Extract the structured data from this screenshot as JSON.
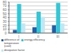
{
  "chart_data": {
    "type": "bar",
    "categories": [
      "I",
      "II",
      "III"
    ],
    "series": [
      {
        "name": "difference of\ntemperature\n(cool)",
        "color": "#2060a8",
        "values": [
          8,
          15,
          20
        ]
      },
      {
        "name": "energy efficiency",
        "color": "#30c8d8",
        "values": [
          75,
          55,
          78
        ]
      },
      {
        "name": "dissipative factor",
        "color": "#c0e8f4",
        "values": [
          25,
          42,
          25
        ]
      }
    ],
    "ylim": [
      0,
      80
    ],
    "yticks": [
      0,
      10,
      20,
      30,
      40,
      50,
      60,
      70,
      80
    ],
    "grid": true,
    "legend": "bottom"
  }
}
